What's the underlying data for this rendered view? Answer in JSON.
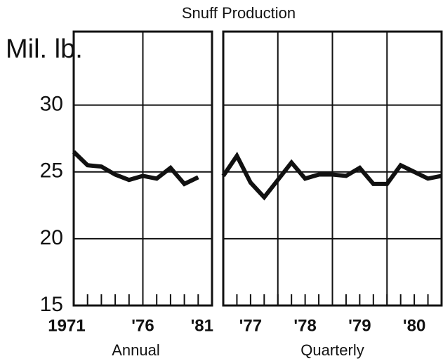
{
  "chart_data": [
    {
      "type": "line",
      "title": "Snuff Production",
      "y_label": "Mil. lb.",
      "x_label": "Annual",
      "x": [
        1971,
        1972,
        1973,
        1974,
        1975,
        1976,
        1977,
        1978,
        1979,
        1980
      ],
      "values": [
        26.5,
        25.5,
        25.4,
        24.8,
        24.4,
        24.7,
        24.5,
        25.3,
        24.1,
        24.6
      ],
      "color": "#111111",
      "xlim": [
        1971,
        1981
      ],
      "xticks": [
        {
          "value": 1971,
          "label": "1971"
        },
        {
          "value": 1976,
          "label": "'76"
        },
        {
          "value": 1981,
          "label": "'81"
        }
      ],
      "xgrid": [
        1976
      ],
      "ylim": [
        15,
        35.5
      ],
      "yticks": [
        15,
        20,
        25,
        30
      ],
      "grid": true
    },
    {
      "type": "line",
      "x_label": "Quarterly",
      "x": [
        1977,
        1977.25,
        1977.5,
        1977.75,
        1978,
        1978.25,
        1978.5,
        1978.75,
        1979,
        1979.25,
        1979.5,
        1979.75,
        1980,
        1980.25,
        1980.5,
        1980.75,
        1981
      ],
      "values": [
        24.7,
        26.2,
        24.2,
        23.1,
        24.4,
        25.7,
        24.5,
        24.8,
        24.8,
        24.7,
        25.3,
        24.1,
        24.1,
        25.5,
        25.0,
        24.5,
        24.7
      ],
      "color": "#111111",
      "xlim": [
        1977,
        1981
      ],
      "xticks": [
        {
          "value": 1977.5,
          "label": "'77"
        },
        {
          "value": 1978.5,
          "label": "'78"
        },
        {
          "value": 1979.5,
          "label": "'79"
        },
        {
          "value": 1980.5,
          "label": "'80"
        }
      ],
      "xgrid": [
        1978,
        1979,
        1980
      ],
      "ylim": [
        15,
        35.5
      ],
      "yticks": [
        15,
        20,
        25,
        30
      ],
      "grid": true
    }
  ]
}
